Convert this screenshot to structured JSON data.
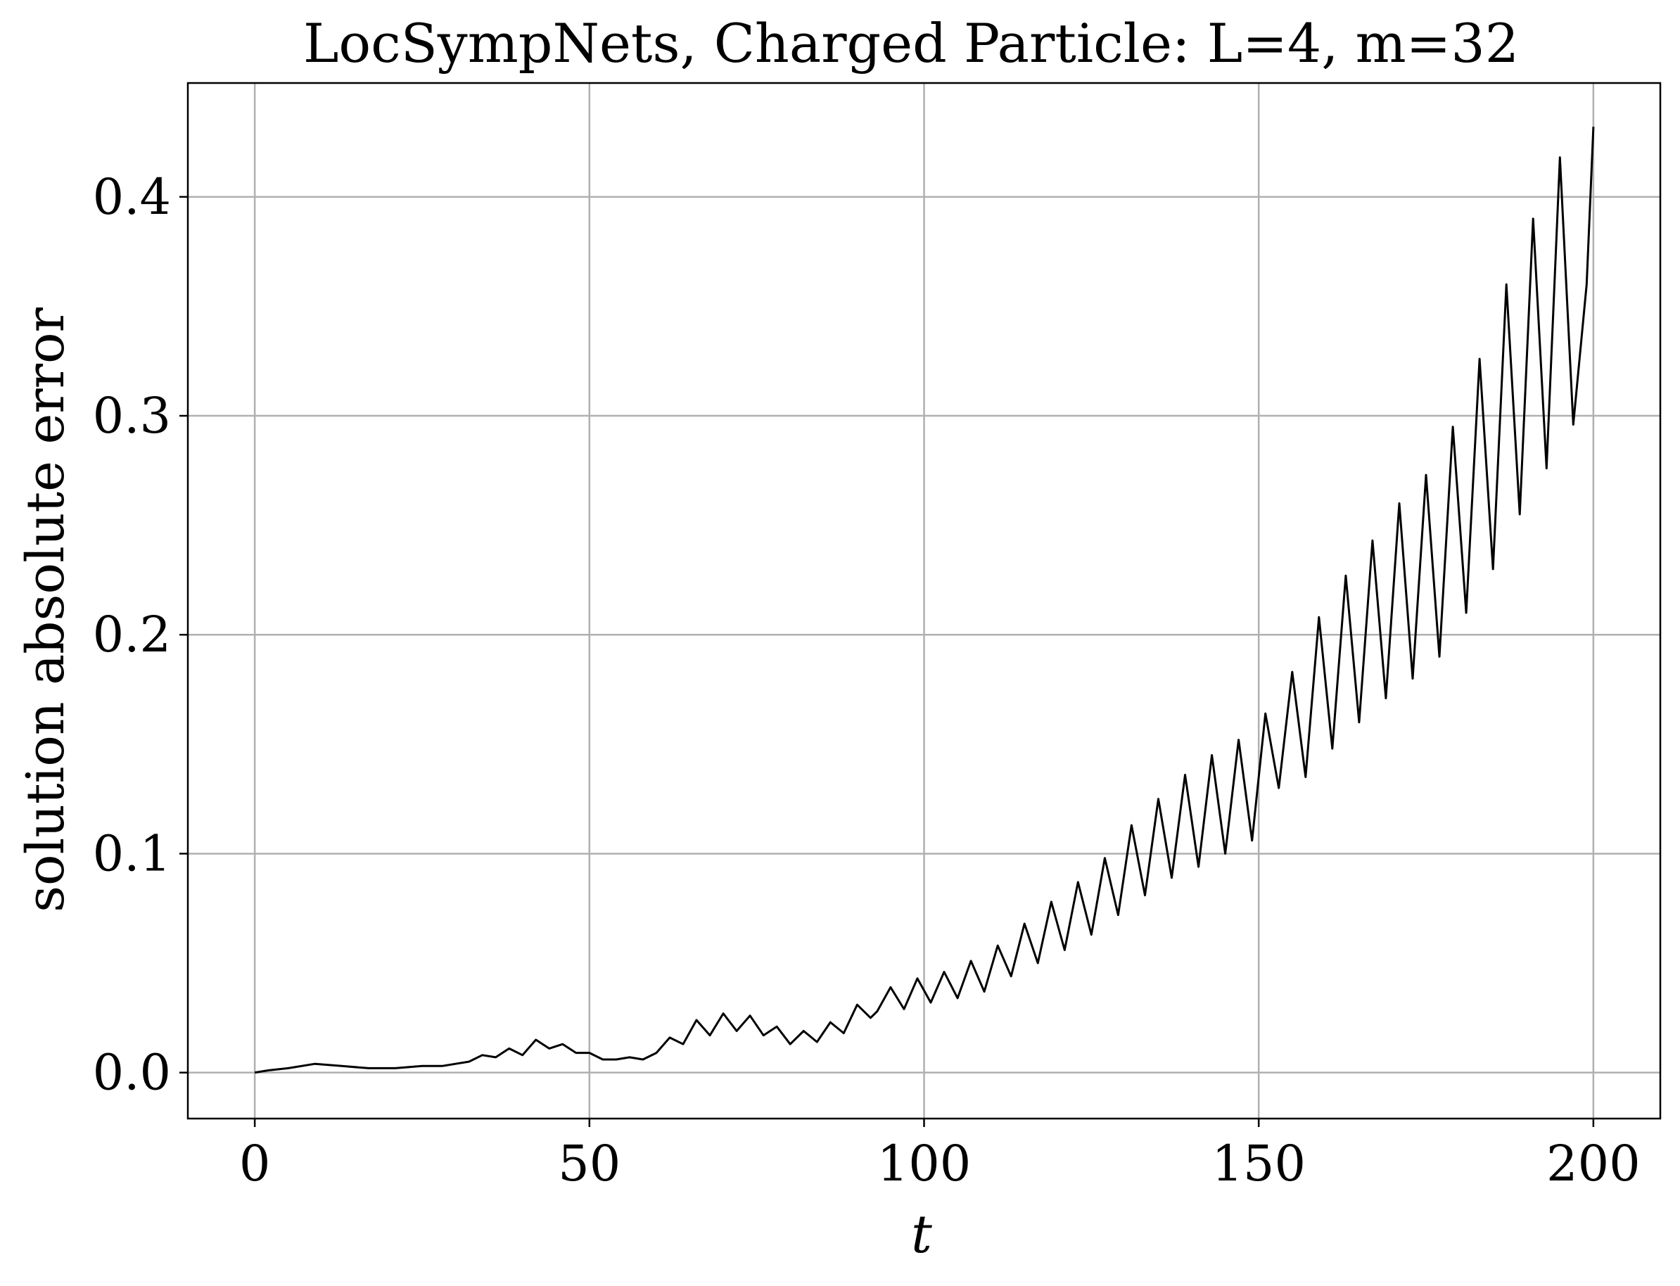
{
  "chart_data": {
    "type": "line",
    "title": "LocSympNets, Charged Particle: L=4, m=32",
    "xlabel": "t",
    "ylabel": "solution absolute error",
    "xlim": [
      -10,
      210
    ],
    "ylim": [
      -0.021,
      0.452
    ],
    "xticks": [
      0,
      50,
      100,
      150,
      200
    ],
    "xtick_labels": [
      "0",
      "50",
      "100",
      "150",
      "200"
    ],
    "yticks": [
      0.0,
      0.1,
      0.2,
      0.3,
      0.4
    ],
    "ytick_labels": [
      "0.0",
      "0.1",
      "0.2",
      "0.3",
      "0.4"
    ],
    "grid": true,
    "legend": "none",
    "series": [
      {
        "color": "#000000",
        "x": [
          0,
          2,
          5,
          9,
          13,
          17,
          21,
          25,
          28,
          30,
          32,
          34,
          36,
          38,
          40,
          42,
          44,
          46,
          48,
          50,
          52,
          54,
          56,
          58,
          60,
          62,
          64,
          66,
          68,
          70,
          72,
          74,
          76,
          78,
          80,
          82,
          84,
          86,
          88,
          90,
          92,
          93,
          95,
          97,
          99,
          101,
          103,
          105,
          107,
          109,
          111,
          113,
          115,
          117,
          119,
          121,
          123,
          125,
          127,
          129,
          131,
          133,
          135,
          137,
          139,
          141,
          143,
          145,
          147,
          149,
          151,
          153,
          155,
          157,
          159,
          161,
          163,
          165,
          167,
          169,
          171,
          173,
          175,
          177,
          179,
          181,
          183,
          185,
          187,
          189,
          191,
          193,
          195,
          197,
          199,
          200
        ],
        "values": [
          0.0,
          0.001,
          0.002,
          0.004,
          0.003,
          0.002,
          0.002,
          0.003,
          0.003,
          0.004,
          0.005,
          0.008,
          0.007,
          0.011,
          0.008,
          0.015,
          0.011,
          0.013,
          0.009,
          0.009,
          0.006,
          0.006,
          0.007,
          0.006,
          0.009,
          0.016,
          0.013,
          0.024,
          0.017,
          0.027,
          0.019,
          0.026,
          0.017,
          0.021,
          0.013,
          0.019,
          0.014,
          0.023,
          0.018,
          0.031,
          0.025,
          0.028,
          0.039,
          0.029,
          0.043,
          0.032,
          0.046,
          0.034,
          0.051,
          0.037,
          0.058,
          0.044,
          0.068,
          0.05,
          0.078,
          0.056,
          0.087,
          0.063,
          0.098,
          0.072,
          0.113,
          0.081,
          0.125,
          0.089,
          0.136,
          0.094,
          0.145,
          0.1,
          0.152,
          0.106,
          0.164,
          0.13,
          0.183,
          0.135,
          0.208,
          0.148,
          0.227,
          0.16,
          0.243,
          0.171,
          0.26,
          0.18,
          0.273,
          0.19,
          0.295,
          0.21,
          0.326,
          0.23,
          0.36,
          0.255,
          0.39,
          0.276,
          0.418,
          0.296,
          0.36,
          0.432
        ]
      }
    ]
  }
}
